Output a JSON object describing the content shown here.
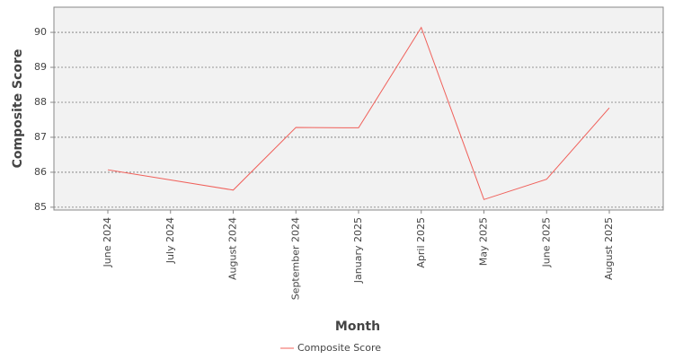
{
  "chart_data": {
    "type": "line",
    "x_label": "Month",
    "y_label": "Composite Score",
    "categories": [
      "June 2024",
      "July 2024",
      "August 2024",
      "September 2024",
      "January 2025",
      "April 2025",
      "May 2025",
      "June 2025",
      "August 2025"
    ],
    "series": [
      {
        "name": "Composite Score",
        "color": "#f0605a",
        "values": [
          86.07,
          85.78,
          85.49,
          87.28,
          87.27,
          90.14,
          85.22,
          85.8,
          87.84
        ]
      }
    ],
    "ylim": [
      84.92,
      90.72
    ],
    "yticks": [
      85,
      86,
      87,
      88,
      89,
      90
    ],
    "grid": true,
    "legend": "bottom"
  }
}
